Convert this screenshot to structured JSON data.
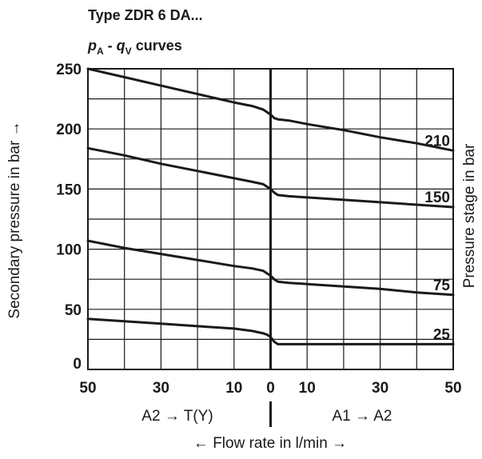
{
  "chart_data": {
    "type": "line",
    "title": "Type ZDR 6 DA...",
    "subtitle": {
      "p": "p",
      "p_sub": "A",
      "sep": " - ",
      "q": "q",
      "q_sub": "V",
      "tail": " curves"
    },
    "xlabel": "← Flow rate in l/min →",
    "ylabel": "Secondary pressure in bar →",
    "ylabel_right": "Pressure stage in bar",
    "x_direction_left": "A2 → T(Y)",
    "x_direction_right": "A1 → A2",
    "x_ticks": [
      {
        "value": -50,
        "label": "50"
      },
      {
        "value": -30,
        "label": "30"
      },
      {
        "value": -10,
        "label": "10"
      },
      {
        "value": 0,
        "label": "0"
      },
      {
        "value": 10,
        "label": "10"
      },
      {
        "value": 30,
        "label": "30"
      },
      {
        "value": 50,
        "label": "50"
      }
    ],
    "y_ticks": [
      {
        "value": 0,
        "label": "0"
      },
      {
        "value": 50,
        "label": "50"
      },
      {
        "value": 100,
        "label": "100"
      },
      {
        "value": 150,
        "label": "150"
      },
      {
        "value": 200,
        "label": "200"
      },
      {
        "value": 250,
        "label": "250"
      }
    ],
    "xlim": [
      -50,
      50
    ],
    "ylim": [
      0,
      250
    ],
    "grid": true,
    "x": [
      -50,
      -40,
      -30,
      -20,
      -10,
      -5,
      -2,
      -1,
      0,
      1,
      2,
      5,
      10,
      20,
      30,
      40,
      50
    ],
    "series": [
      {
        "name": "210",
        "values": [
          250,
          243,
          236,
          229,
          222,
          219,
          216,
          214,
          212,
          209,
          208,
          207,
          204,
          199,
          193,
          188,
          182
        ]
      },
      {
        "name": "150",
        "values": [
          184,
          178,
          171,
          165,
          159,
          156,
          154,
          152,
          150,
          147,
          145,
          144,
          143,
          141,
          139,
          137,
          135
        ]
      },
      {
        "name": "75",
        "values": [
          107,
          101,
          96,
          91,
          86,
          84,
          82,
          80,
          78,
          75,
          73,
          72,
          71,
          69,
          67,
          64,
          62
        ]
      },
      {
        "name": "25",
        "values": [
          42,
          40,
          38,
          36,
          34,
          32,
          30,
          29,
          27,
          23,
          21,
          21,
          21,
          21,
          21,
          21,
          21
        ]
      }
    ]
  }
}
